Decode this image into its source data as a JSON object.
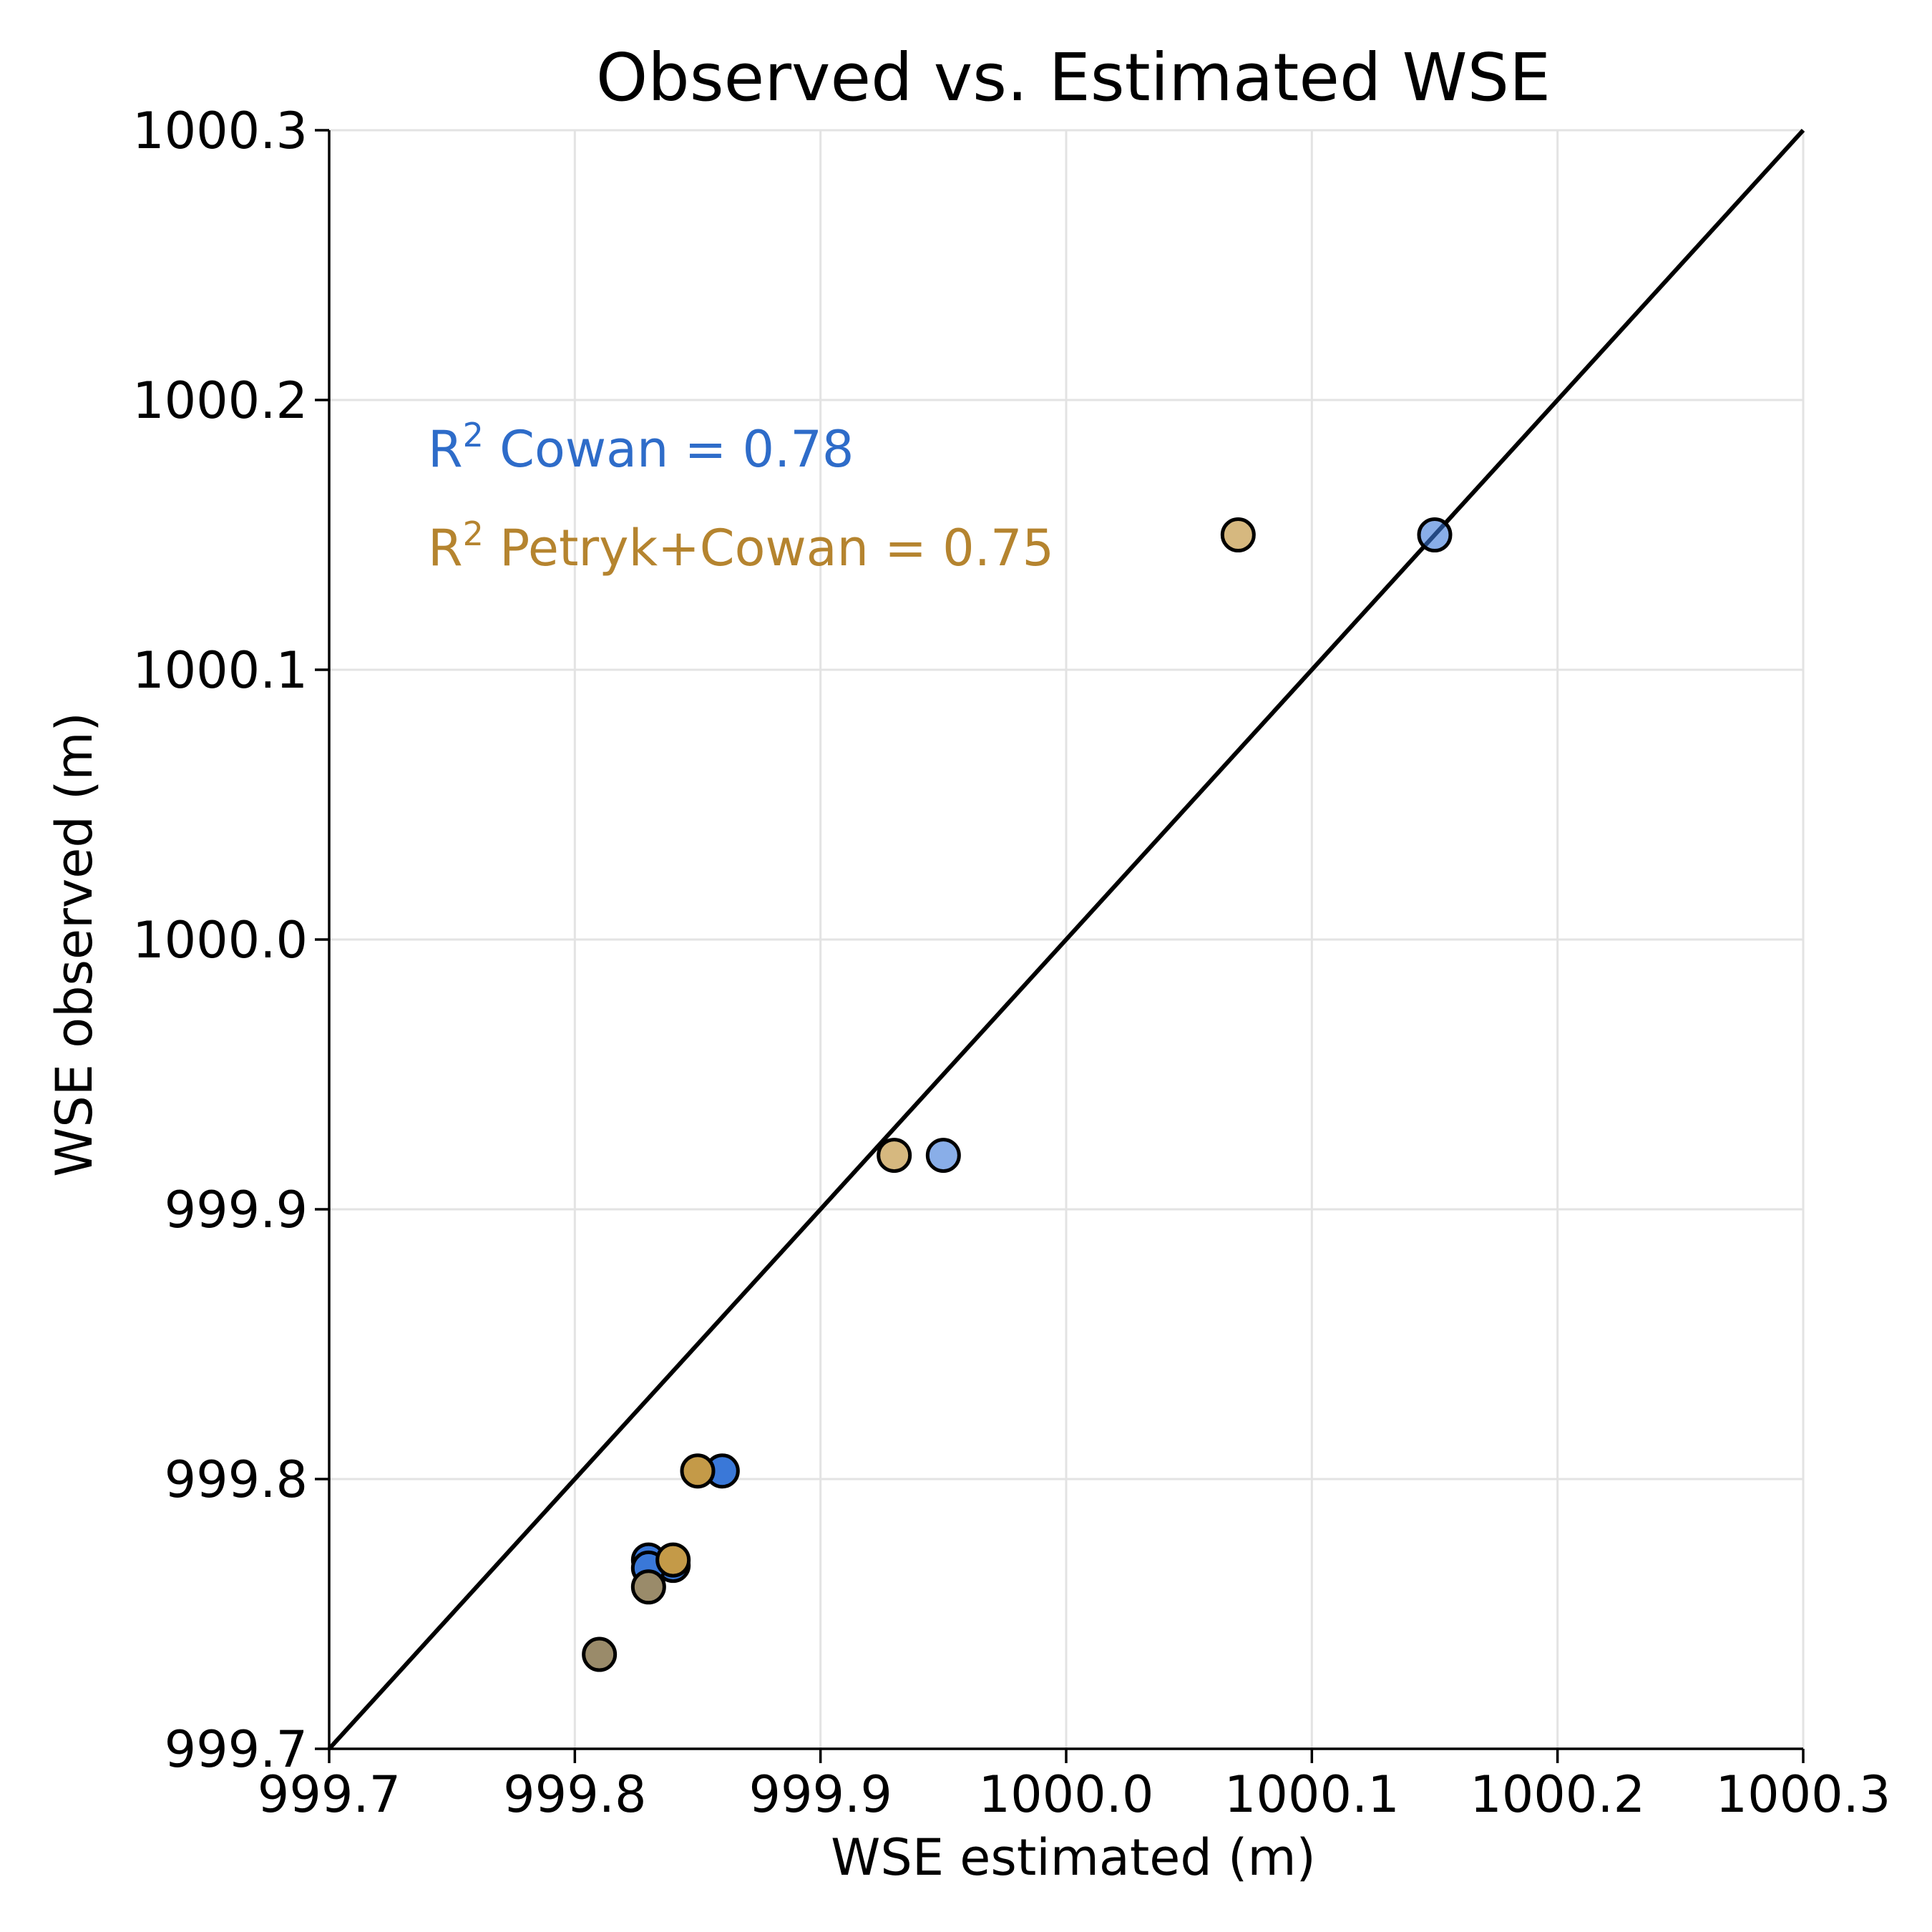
{
  "chart_data": {
    "type": "scatter",
    "title": "Observed vs. Estimated WSE",
    "xlabel": "WSE estimated (m)",
    "ylabel": "WSE observed (m)",
    "xlim": [
      999.7,
      1000.3
    ],
    "ylim": [
      999.7,
      1000.3
    ],
    "xticks": [
      "999.7",
      "999.8",
      "999.9",
      "1000.0",
      "1000.1",
      "1000.2",
      "1000.3"
    ],
    "yticks": [
      "999.7",
      "999.8",
      "999.9",
      "1000.0",
      "1000.1",
      "1000.2",
      "1000.3"
    ],
    "grid": true,
    "identity_line": [
      [
        999.7,
        999.7
      ],
      [
        1000.3,
        1000.3
      ]
    ],
    "annotations": [
      {
        "prefix": "R",
        "sup": "2",
        "text": " Cowan = 0.78",
        "color": "#2e6cc9"
      },
      {
        "prefix": "R",
        "sup": "2",
        "text": " Petryk+Cowan = 0.75",
        "color": "#b5842f"
      }
    ],
    "series": [
      {
        "color": "#3a78d8",
        "points": [
          {
            "x": 1000.15,
            "y": 1000.15,
            "alpha": 0.6
          },
          {
            "x": 999.95,
            "y": 999.92,
            "alpha": 0.6
          },
          {
            "x": 999.86,
            "y": 999.803,
            "alpha": 1.0
          },
          {
            "x": 999.83,
            "y": 999.77,
            "alpha": 1.0
          },
          {
            "x": 999.84,
            "y": 999.768,
            "alpha": 1.0
          },
          {
            "x": 999.83,
            "y": 999.767,
            "alpha": 1.0
          }
        ]
      },
      {
        "color": "#c49a48",
        "points": [
          {
            "x": 1000.07,
            "y": 1000.15,
            "alpha": 0.7
          },
          {
            "x": 999.93,
            "y": 999.92,
            "alpha": 0.7
          },
          {
            "x": 999.85,
            "y": 999.803,
            "alpha": 1.0
          },
          {
            "x": 999.84,
            "y": 999.77,
            "alpha": 1.0
          },
          {
            "x": 999.83,
            "y": 999.76,
            "alpha": 0.7
          },
          {
            "x": 999.81,
            "y": 999.735,
            "alpha": 0.7
          }
        ]
      }
    ],
    "point_fill_overrides": {
      "dark": "#9a8b6a"
    }
  }
}
